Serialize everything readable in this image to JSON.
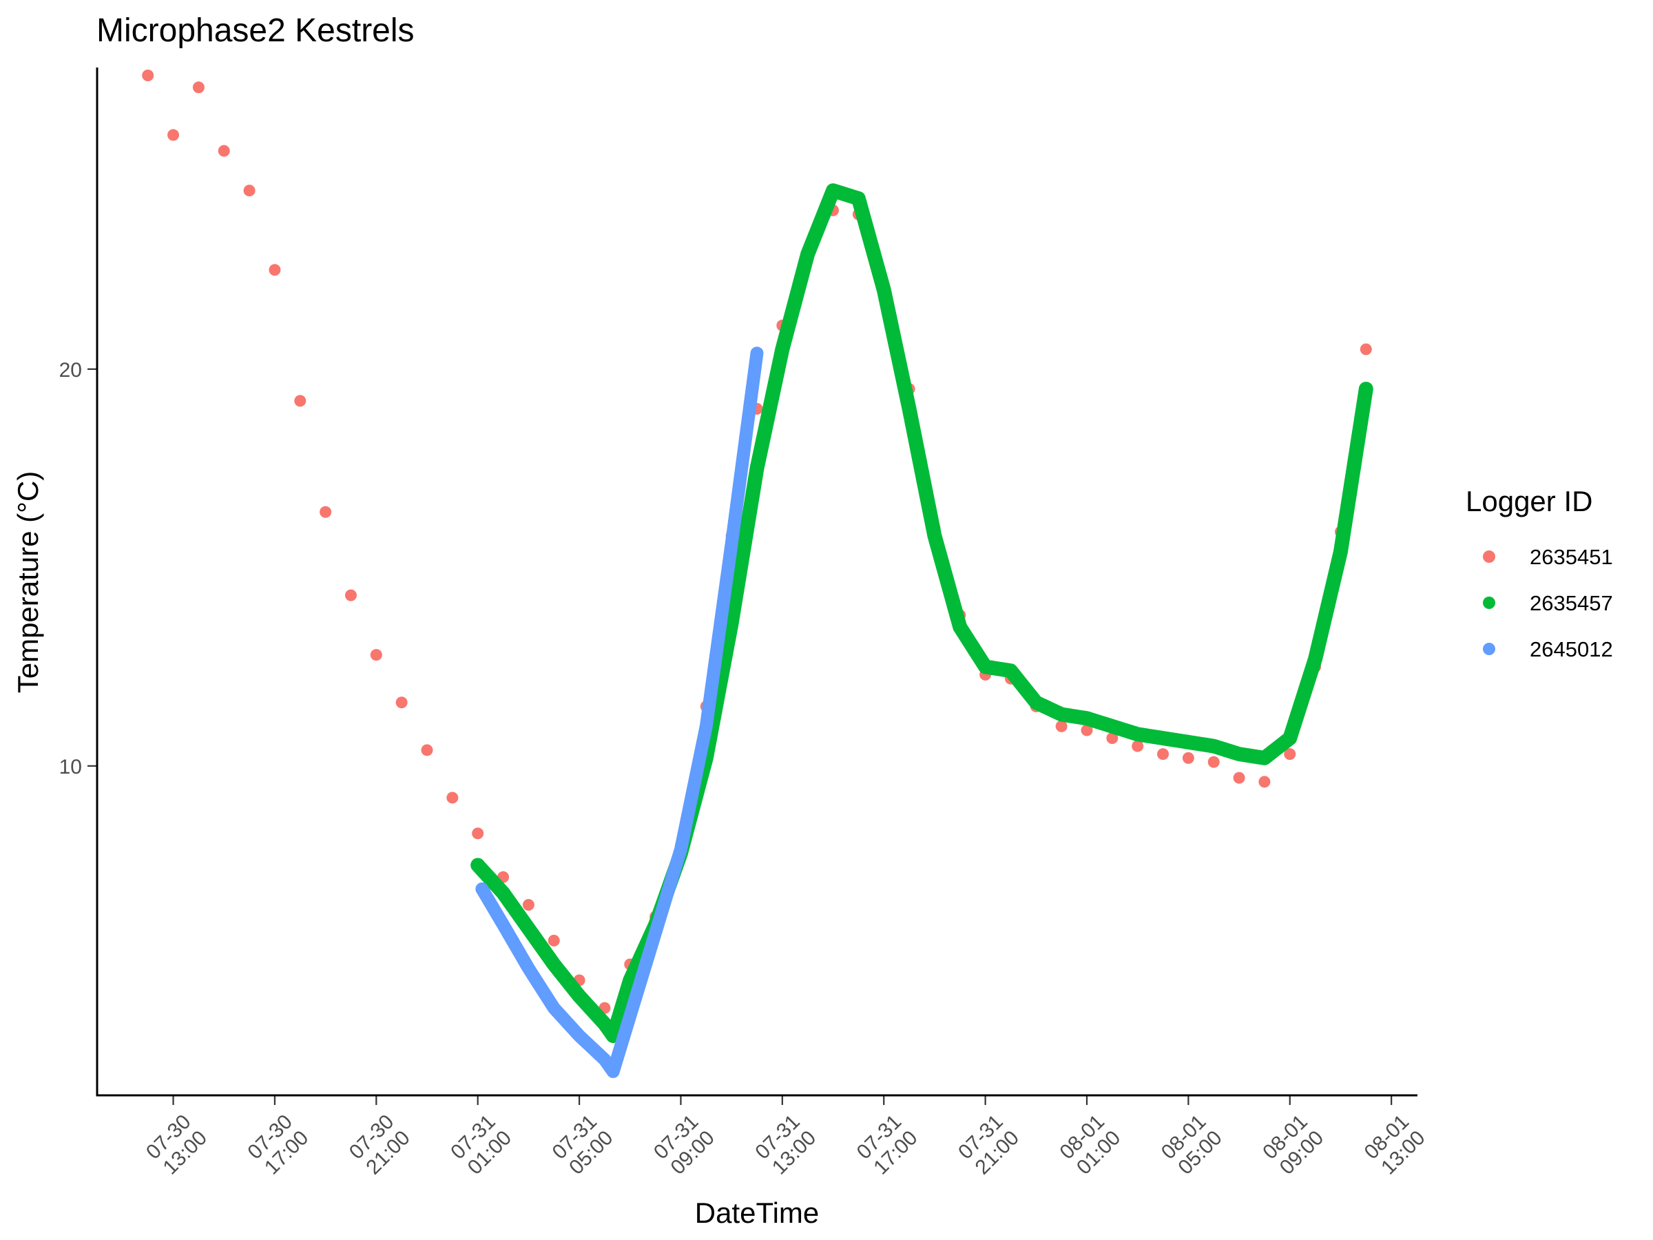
{
  "chart_data": {
    "type": "scatter",
    "title": "Microphase2 Kestrels",
    "xlabel": "DateTime",
    "ylabel": "Temperature (°C)",
    "xlim": [
      "2024-07-30 10:00",
      "2024-08-01 14:00"
    ],
    "ylim": [
      1.7,
      27.6
    ],
    "x_ticks": [
      {
        "t": "2024-07-30 13:00",
        "label": [
          "07-30",
          "13:00"
        ]
      },
      {
        "t": "2024-07-30 17:00",
        "label": [
          "07-30",
          "17:00"
        ]
      },
      {
        "t": "2024-07-30 21:00",
        "label": [
          "07-30",
          "21:00"
        ]
      },
      {
        "t": "2024-07-31 01:00",
        "label": [
          "07-31",
          "01:00"
        ]
      },
      {
        "t": "2024-07-31 05:00",
        "label": [
          "07-31",
          "05:00"
        ]
      },
      {
        "t": "2024-07-31 09:00",
        "label": [
          "07-31",
          "09:00"
        ]
      },
      {
        "t": "2024-07-31 13:00",
        "label": [
          "07-31",
          "13:00"
        ]
      },
      {
        "t": "2024-07-31 17:00",
        "label": [
          "07-31",
          "17:00"
        ]
      },
      {
        "t": "2024-07-31 21:00",
        "label": [
          "07-31",
          "21:00"
        ]
      },
      {
        "t": "2024-08-01 01:00",
        "label": [
          "08-01",
          "01:00"
        ]
      },
      {
        "t": "2024-08-01 05:00",
        "label": [
          "08-01",
          "05:00"
        ]
      },
      {
        "t": "2024-08-01 09:00",
        "label": [
          "08-01",
          "09:00"
        ]
      },
      {
        "t": "2024-08-01 13:00",
        "label": [
          "08-01",
          "13:00"
        ]
      }
    ],
    "y_ticks": [
      10,
      20
    ],
    "grid": false,
    "legend": {
      "title": "Logger ID",
      "position": "right"
    },
    "series": [
      {
        "name": "2635451",
        "color": "#F8766D",
        "points": [
          [
            "2024-07-30 12:00",
            27.4
          ],
          [
            "2024-07-30 13:00",
            25.9
          ],
          [
            "2024-07-30 14:00",
            27.1
          ],
          [
            "2024-07-30 15:00",
            25.5
          ],
          [
            "2024-07-30 16:00",
            24.5
          ],
          [
            "2024-07-30 17:00",
            22.5
          ],
          [
            "2024-07-30 18:00",
            19.2
          ],
          [
            "2024-07-30 19:00",
            16.4
          ],
          [
            "2024-07-30 20:00",
            14.3
          ],
          [
            "2024-07-30 21:00",
            12.8
          ],
          [
            "2024-07-30 22:00",
            11.6
          ],
          [
            "2024-07-30 23:00",
            10.4
          ],
          [
            "2024-07-31 00:00",
            9.2
          ],
          [
            "2024-07-31 01:00",
            8.3
          ],
          [
            "2024-07-31 02:00",
            7.2
          ],
          [
            "2024-07-31 03:00",
            6.5
          ],
          [
            "2024-07-31 04:00",
            5.6
          ],
          [
            "2024-07-31 05:00",
            4.6
          ],
          [
            "2024-07-31 06:00",
            3.9
          ],
          [
            "2024-07-31 07:00",
            5.0
          ],
          [
            "2024-07-31 08:00",
            6.2
          ],
          [
            "2024-07-31 09:00",
            8.0
          ],
          [
            "2024-07-31 10:00",
            11.5
          ],
          [
            "2024-07-31 11:00",
            15.8
          ],
          [
            "2024-07-31 12:00",
            19.0
          ],
          [
            "2024-07-31 13:00",
            21.1
          ],
          [
            "2024-07-31 14:00",
            22.8
          ],
          [
            "2024-07-31 15:00",
            24.0
          ],
          [
            "2024-07-31 16:00",
            23.9
          ],
          [
            "2024-07-31 17:00",
            22.1
          ],
          [
            "2024-07-31 18:00",
            19.5
          ],
          [
            "2024-07-31 19:00",
            16.0
          ],
          [
            "2024-07-31 20:00",
            13.8
          ],
          [
            "2024-07-31 21:00",
            12.3
          ],
          [
            "2024-07-31 22:00",
            12.2
          ],
          [
            "2024-07-31 23:00",
            11.5
          ],
          [
            "2024-08-01 00:00",
            11.0
          ],
          [
            "2024-08-01 01:00",
            10.9
          ],
          [
            "2024-08-01 02:00",
            10.7
          ],
          [
            "2024-08-01 03:00",
            10.5
          ],
          [
            "2024-08-01 04:00",
            10.3
          ],
          [
            "2024-08-01 05:00",
            10.2
          ],
          [
            "2024-08-01 06:00",
            10.1
          ],
          [
            "2024-08-01 07:00",
            9.7
          ],
          [
            "2024-08-01 08:00",
            9.6
          ],
          [
            "2024-08-01 09:00",
            10.3
          ],
          [
            "2024-08-01 10:00",
            12.5
          ],
          [
            "2024-08-01 11:00",
            15.9
          ],
          [
            "2024-08-01 12:00",
            20.5
          ]
        ]
      },
      {
        "name": "2635457",
        "color": "#00BA38",
        "points": [
          [
            "2024-07-31 01:00",
            7.5
          ],
          [
            "2024-07-31 02:00",
            6.8
          ],
          [
            "2024-07-31 03:00",
            5.9
          ],
          [
            "2024-07-31 04:00",
            5.0
          ],
          [
            "2024-07-31 05:00",
            4.2
          ],
          [
            "2024-07-31 06:00",
            3.5
          ],
          [
            "2024-07-31 06:20",
            3.2
          ],
          [
            "2024-07-31 07:00",
            4.6
          ],
          [
            "2024-07-31 08:00",
            6.0
          ],
          [
            "2024-07-31 09:00",
            7.8
          ],
          [
            "2024-07-31 10:00",
            10.2
          ],
          [
            "2024-07-31 11:00",
            13.6
          ],
          [
            "2024-07-31 12:00",
            17.5
          ],
          [
            "2024-07-31 13:00",
            20.5
          ],
          [
            "2024-07-31 14:00",
            22.9
          ],
          [
            "2024-07-31 15:00",
            24.5
          ],
          [
            "2024-07-31 16:00",
            24.3
          ],
          [
            "2024-07-31 17:00",
            22.0
          ],
          [
            "2024-07-31 18:00",
            19.0
          ],
          [
            "2024-07-31 19:00",
            15.8
          ],
          [
            "2024-07-31 20:00",
            13.5
          ],
          [
            "2024-07-31 21:00",
            12.5
          ],
          [
            "2024-07-31 22:00",
            12.4
          ],
          [
            "2024-07-31 23:00",
            11.6
          ],
          [
            "2024-08-01 00:00",
            11.3
          ],
          [
            "2024-08-01 01:00",
            11.2
          ],
          [
            "2024-08-01 02:00",
            11.0
          ],
          [
            "2024-08-01 03:00",
            10.8
          ],
          [
            "2024-08-01 04:00",
            10.7
          ],
          [
            "2024-08-01 05:00",
            10.6
          ],
          [
            "2024-08-01 06:00",
            10.5
          ],
          [
            "2024-08-01 07:00",
            10.3
          ],
          [
            "2024-08-01 08:00",
            10.2
          ],
          [
            "2024-08-01 09:00",
            10.7
          ],
          [
            "2024-08-01 10:00",
            12.7
          ],
          [
            "2024-08-01 11:00",
            15.4
          ],
          [
            "2024-08-01 12:00",
            19.5
          ]
        ]
      },
      {
        "name": "2645012",
        "color": "#619CFF",
        "points": [
          [
            "2024-07-31 01:10",
            6.9
          ],
          [
            "2024-07-31 02:00",
            6.0
          ],
          [
            "2024-07-31 03:00",
            4.9
          ],
          [
            "2024-07-31 04:00",
            3.9
          ],
          [
            "2024-07-31 05:00",
            3.2
          ],
          [
            "2024-07-31 06:00",
            2.6
          ],
          [
            "2024-07-31 06:20",
            2.3
          ],
          [
            "2024-07-31 06:40",
            3.0
          ],
          [
            "2024-07-31 08:00",
            5.8
          ],
          [
            "2024-07-31 09:00",
            7.9
          ],
          [
            "2024-07-31 10:00",
            11.0
          ],
          [
            "2024-07-31 11:00",
            15.6
          ],
          [
            "2024-07-31 12:00",
            20.4
          ]
        ]
      }
    ]
  }
}
